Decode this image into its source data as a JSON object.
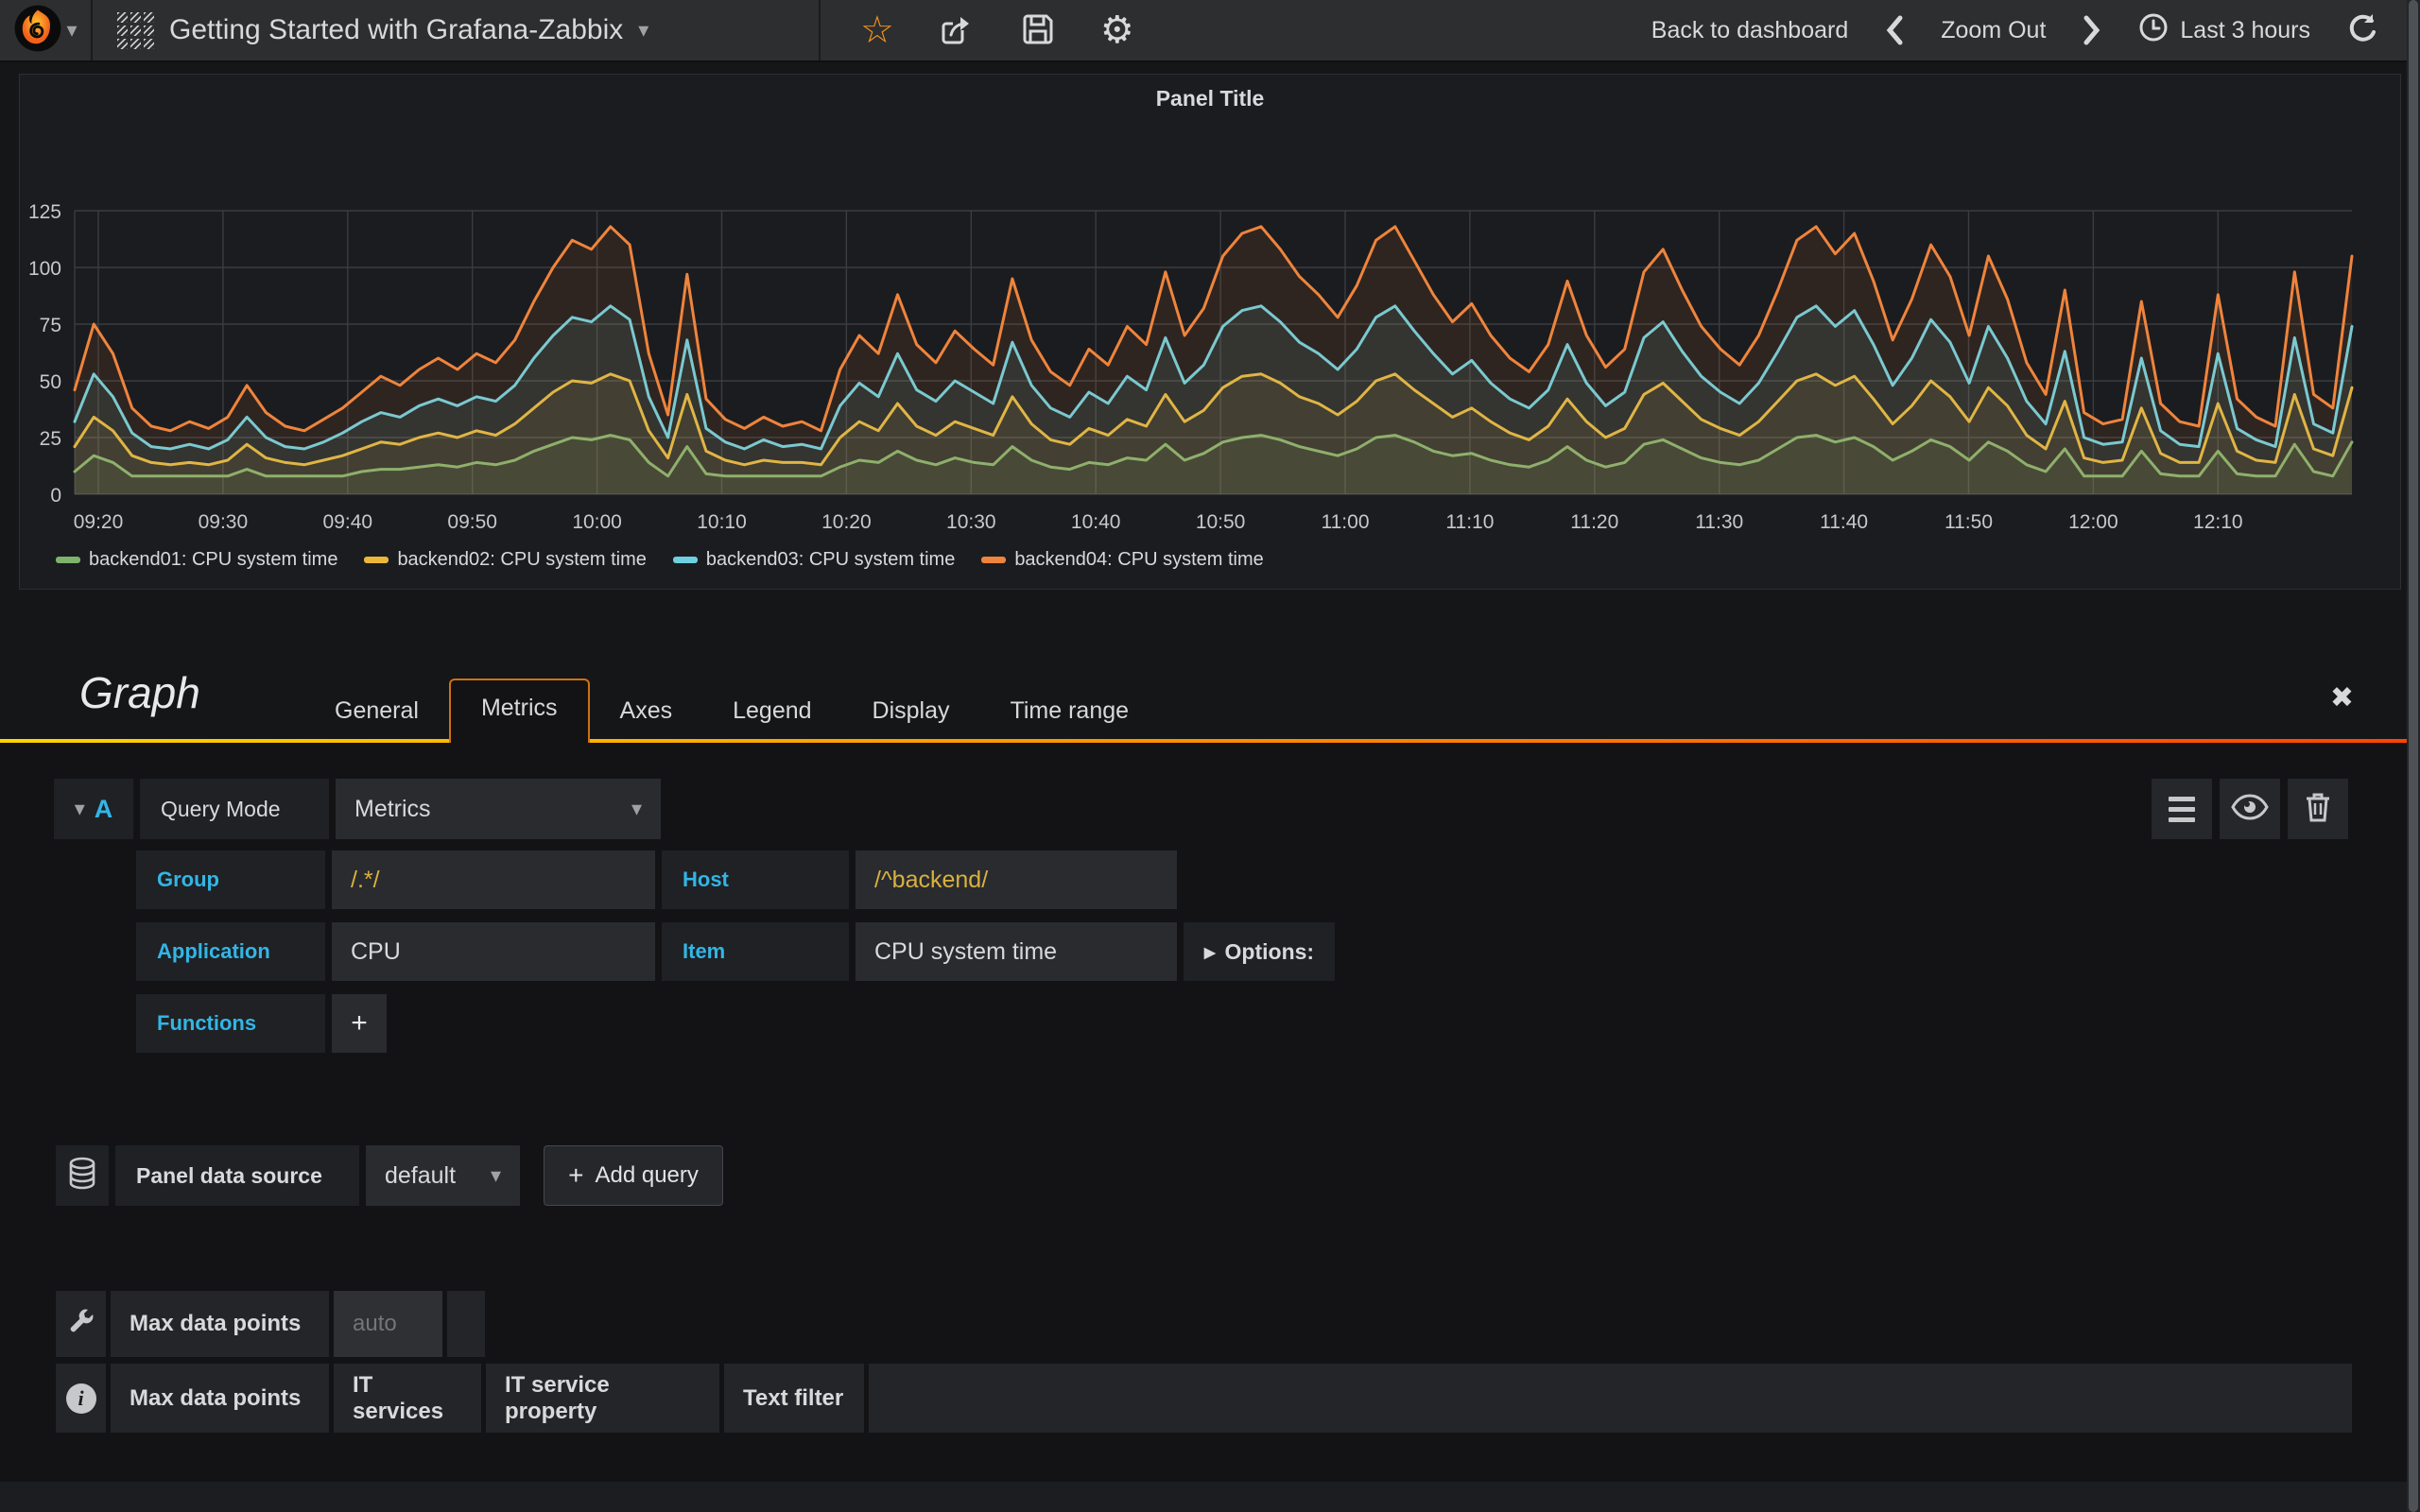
{
  "navbar": {
    "title": "Getting Started with Grafana-Zabbix",
    "back_to_dashboard": "Back to dashboard",
    "zoom_out": "Zoom Out",
    "time_range": "Last 3 hours"
  },
  "icons": {
    "dropdown_caret": "▾",
    "star": "☆",
    "gear": "⚙",
    "options_arrow": "▸",
    "plus": "+",
    "close": "✖",
    "info": "i"
  },
  "chart_data": {
    "type": "line",
    "title": "Panel Title",
    "xlabel": "",
    "ylabel": "",
    "ylim": [
      0,
      125
    ],
    "y_ticks": [
      0,
      25,
      50,
      75,
      100,
      125
    ],
    "x_ticks": [
      "09:20",
      "09:30",
      "09:40",
      "09:50",
      "10:00",
      "10:10",
      "10:20",
      "10:30",
      "10:40",
      "10:50",
      "11:00",
      "11:10",
      "11:20",
      "11:30",
      "11:40",
      "11:50",
      "12:00",
      "12:10"
    ],
    "x_range": [
      "09:18",
      "12:20"
    ],
    "grid": true,
    "legend_position": "bottom",
    "series": [
      {
        "name": "backend01: CPU system time",
        "color": "#7eb26d",
        "values": [
          10,
          17,
          14,
          8,
          8,
          8,
          8,
          8,
          8,
          11,
          8,
          8,
          8,
          8,
          8,
          10,
          11,
          11,
          12,
          13,
          12,
          14,
          13,
          15,
          19,
          22,
          25,
          24,
          26,
          24,
          14,
          8,
          21,
          9,
          8,
          8,
          8,
          8,
          8,
          8,
          12,
          15,
          14,
          19,
          15,
          13,
          16,
          14,
          13,
          21,
          15,
          12,
          11,
          14,
          13,
          16,
          15,
          22,
          15,
          18,
          23,
          25,
          26,
          24,
          21,
          19,
          17,
          20,
          25,
          26,
          23,
          19,
          17,
          18,
          15,
          13,
          12,
          15,
          21,
          15,
          12,
          14,
          22,
          24,
          20,
          16,
          14,
          13,
          15,
          20,
          25,
          26,
          23,
          25,
          21,
          15,
          19,
          24,
          21,
          15,
          23,
          19,
          13,
          10,
          20,
          8,
          8,
          8,
          19,
          9,
          8,
          8,
          19,
          9,
          8,
          8,
          22,
          10,
          8,
          23
        ]
      },
      {
        "name": "backend02: CPU system time",
        "color": "#eab839",
        "values": [
          21,
          34,
          28,
          17,
          14,
          13,
          14,
          13,
          15,
          22,
          16,
          14,
          13,
          15,
          17,
          20,
          23,
          22,
          25,
          27,
          25,
          28,
          26,
          31,
          38,
          45,
          50,
          49,
          53,
          50,
          28,
          16,
          44,
          19,
          15,
          13,
          15,
          14,
          14,
          13,
          25,
          32,
          28,
          40,
          30,
          26,
          32,
          29,
          26,
          43,
          31,
          24,
          22,
          29,
          26,
          33,
          30,
          44,
          32,
          37,
          47,
          52,
          53,
          49,
          43,
          40,
          35,
          41,
          50,
          53,
          46,
          40,
          34,
          38,
          32,
          27,
          24,
          30,
          42,
          32,
          25,
          29,
          44,
          49,
          41,
          33,
          29,
          26,
          32,
          41,
          50,
          53,
          48,
          52,
          42,
          31,
          39,
          50,
          43,
          32,
          47,
          39,
          26,
          20,
          41,
          16,
          14,
          15,
          38,
          18,
          14,
          14,
          40,
          19,
          15,
          14,
          44,
          20,
          17,
          47
        ]
      },
      {
        "name": "backend03: CPU system time",
        "color": "#6ed0e0",
        "values": [
          32,
          53,
          43,
          27,
          21,
          20,
          22,
          20,
          24,
          34,
          25,
          21,
          20,
          23,
          27,
          32,
          36,
          34,
          39,
          42,
          39,
          43,
          41,
          48,
          60,
          70,
          78,
          76,
          83,
          77,
          43,
          25,
          68,
          29,
          23,
          20,
          24,
          21,
          22,
          20,
          39,
          49,
          43,
          62,
          46,
          41,
          50,
          45,
          40,
          67,
          48,
          38,
          34,
          45,
          40,
          52,
          46,
          69,
          49,
          57,
          74,
          81,
          83,
          76,
          67,
          62,
          55,
          64,
          78,
          83,
          72,
          62,
          53,
          59,
          49,
          42,
          38,
          46,
          66,
          49,
          39,
          45,
          69,
          76,
          63,
          52,
          45,
          40,
          49,
          63,
          78,
          83,
          74,
          81,
          66,
          48,
          60,
          77,
          67,
          49,
          74,
          60,
          41,
          31,
          63,
          25,
          22,
          23,
          60,
          28,
          22,
          21,
          62,
          29,
          24,
          21,
          69,
          31,
          27,
          74
        ]
      },
      {
        "name": "backend04: CPU system time",
        "color": "#ef843c",
        "values": [
          46,
          75,
          62,
          38,
          30,
          28,
          32,
          29,
          34,
          48,
          36,
          30,
          28,
          33,
          38,
          45,
          52,
          48,
          55,
          60,
          55,
          62,
          58,
          68,
          85,
          100,
          112,
          108,
          118,
          110,
          62,
          35,
          97,
          42,
          33,
          29,
          34,
          30,
          32,
          28,
          55,
          70,
          62,
          88,
          66,
          58,
          72,
          64,
          57,
          95,
          68,
          54,
          48,
          64,
          57,
          74,
          66,
          98,
          70,
          82,
          105,
          115,
          118,
          108,
          96,
          88,
          78,
          92,
          112,
          118,
          103,
          88,
          76,
          84,
          70,
          60,
          54,
          66,
          94,
          70,
          56,
          64,
          98,
          108,
          90,
          74,
          64,
          57,
          70,
          90,
          112,
          118,
          106,
          115,
          94,
          68,
          86,
          110,
          96,
          70,
          105,
          86,
          58,
          44,
          90,
          36,
          31,
          33,
          85,
          40,
          32,
          30,
          88,
          42,
          34,
          30,
          98,
          44,
          38,
          105
        ]
      }
    ]
  },
  "editor": {
    "panel_type": "Graph",
    "tabs": [
      "General",
      "Metrics",
      "Axes",
      "Legend",
      "Display",
      "Time range"
    ],
    "active_tab": "Metrics",
    "query": {
      "ref_id": "A",
      "query_mode_label": "Query Mode",
      "query_mode_value": "Metrics",
      "group_label": "Group",
      "group_value": "/.*/",
      "host_label": "Host",
      "host_value": "/^backend/",
      "application_label": "Application",
      "application_value": "CPU",
      "item_label": "Item",
      "item_value": "CPU system time",
      "options_label": "Options:",
      "functions_label": "Functions"
    },
    "datasource": {
      "label": "Panel data source",
      "value": "default",
      "add_query": "Add query"
    },
    "footer": {
      "max_data_points_label": "Max data points",
      "max_data_points_placeholder": "auto",
      "info_tabs": [
        "Max data points",
        "IT services",
        "IT service property",
        "Text filter"
      ]
    }
  }
}
